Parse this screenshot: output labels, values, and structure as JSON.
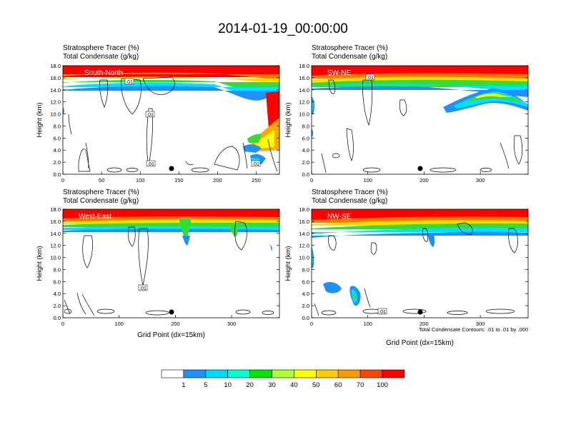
{
  "title": "2014-01-19_00:00:00",
  "panels": [
    {
      "id": "p1",
      "field1": "Stratosphere Tracer   (%)",
      "field2": "Total Condensate   (g/kg)",
      "cross_section": "South-North",
      "ylabel": "Height (km)",
      "xlabel": "",
      "yticks": [
        "0.0",
        "2.0",
        "4.0",
        "6.0",
        "8.0",
        "10.0",
        "12.0",
        "14.0",
        "16.0",
        "18.0"
      ],
      "xticks": [
        "0",
        "50",
        "100",
        "150",
        "200",
        "250"
      ],
      "contour_labels": [
        ".01",
        ".01",
        ".01",
        ".01"
      ]
    },
    {
      "id": "p2",
      "field1": "Stratosphere Tracer   (%)",
      "field2": "Total Condensate   (g/kg)",
      "cross_section": "SW-NE",
      "ylabel": "Height (km)",
      "xlabel": "",
      "yticks": [
        "0.0",
        "2.0",
        "4.0",
        "6.0",
        "8.0",
        "10.0",
        "12.0",
        "14.0",
        "16.0",
        "18.0"
      ],
      "xticks": [
        "0",
        "100",
        "200",
        "300"
      ],
      "contour_labels": [
        ".01"
      ]
    },
    {
      "id": "p3",
      "field1": "Stratosphere Tracer   (%)",
      "field2": "Total Condensate   (g/kg)",
      "cross_section": "West-East",
      "ylabel": "Height (km)",
      "xlabel": "Grid Point (dx=15km)",
      "yticks": [
        "0.0",
        "2.0",
        "4.0",
        "6.0",
        "8.0",
        "10.0",
        "12.0",
        "14.0",
        "16.0",
        "18.0"
      ],
      "xticks": [
        "0",
        "100",
        "200",
        "300"
      ],
      "contour_labels": [
        ".01"
      ]
    },
    {
      "id": "p4",
      "field1": "Stratosphere Tracer   (%)",
      "field2": "Total Condensate   (g/kg)",
      "cross_section": "NW-SE",
      "ylabel": "Height (km)",
      "xlabel": "Grid Point (dx=15km)",
      "yticks": [
        "0.0",
        "2.0",
        "4.0",
        "6.0",
        "8.0",
        "10.0",
        "12.0",
        "14.0",
        "16.0",
        "18.0"
      ],
      "xticks": [
        "0",
        "100",
        "200",
        "300"
      ],
      "contour_labels": [
        ".01"
      ],
      "note": "Total Condensate Contours: .01 to .01 by .000"
    }
  ],
  "colorbar": {
    "levels": [
      "1",
      "5",
      "10",
      "20",
      "30",
      "40",
      "50",
      "60",
      "70",
      "100"
    ],
    "colors": [
      "#ffffff",
      "#1e90ff",
      "#00d8ff",
      "#00ffcc",
      "#00e600",
      "#aaff33",
      "#ffff00",
      "#ffcc00",
      "#ff9900",
      "#ff4400",
      "#ff0000"
    ]
  },
  "chart_data": {
    "type": "heatmap",
    "title": "2014-01-19_00:00:00",
    "ylabel": "Height (km)",
    "xlabel": "Grid Point (dx=15km)",
    "ylim": [
      0,
      18
    ],
    "xlim_panels": [
      [
        0,
        280
      ],
      [
        0,
        385
      ],
      [
        0,
        385
      ],
      [
        0,
        385
      ]
    ],
    "tracer_levels_percent": [
      1,
      5,
      10,
      20,
      30,
      40,
      50,
      60,
      70,
      100
    ],
    "condensate_contour_g_per_kg": 0.01,
    "panels": [
      "South-North",
      "SW-NE",
      "West-East",
      "NW-SE"
    ]
  }
}
